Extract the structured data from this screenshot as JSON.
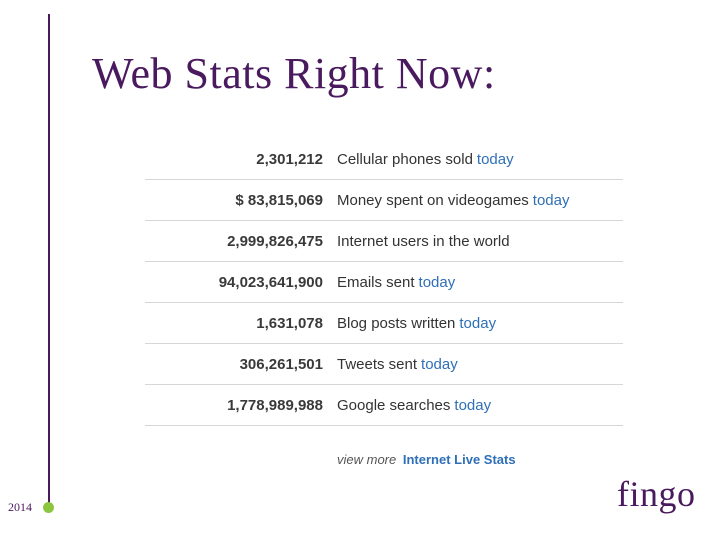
{
  "slide": {
    "title": "Web Stats Right Now:",
    "year": "2014",
    "logo": "fingo"
  },
  "colors": {
    "title": "#4a1a5e",
    "rule": "#4a1a5e",
    "dot": "#8cc63f",
    "link": "#2f6fb7"
  },
  "stats": [
    {
      "value": "2,301,212",
      "label": "Cellular phones sold",
      "suffix": "today"
    },
    {
      "value": "$ 83,815,069",
      "label": "Money spent on videogames",
      "suffix": "today"
    },
    {
      "value": "2,999,826,475",
      "label": "Internet users in the world",
      "suffix": ""
    },
    {
      "value": "94,023,641,900",
      "label": "Emails sent",
      "suffix": "today"
    },
    {
      "value": "1,631,078",
      "label": "Blog posts written",
      "suffix": "today"
    },
    {
      "value": "306,261,501",
      "label": "Tweets sent",
      "suffix": "today"
    },
    {
      "value": "1,778,989,988",
      "label": "Google searches",
      "suffix": "today"
    }
  ],
  "footer": {
    "prefix": "view more",
    "link": "Internet Live Stats"
  }
}
